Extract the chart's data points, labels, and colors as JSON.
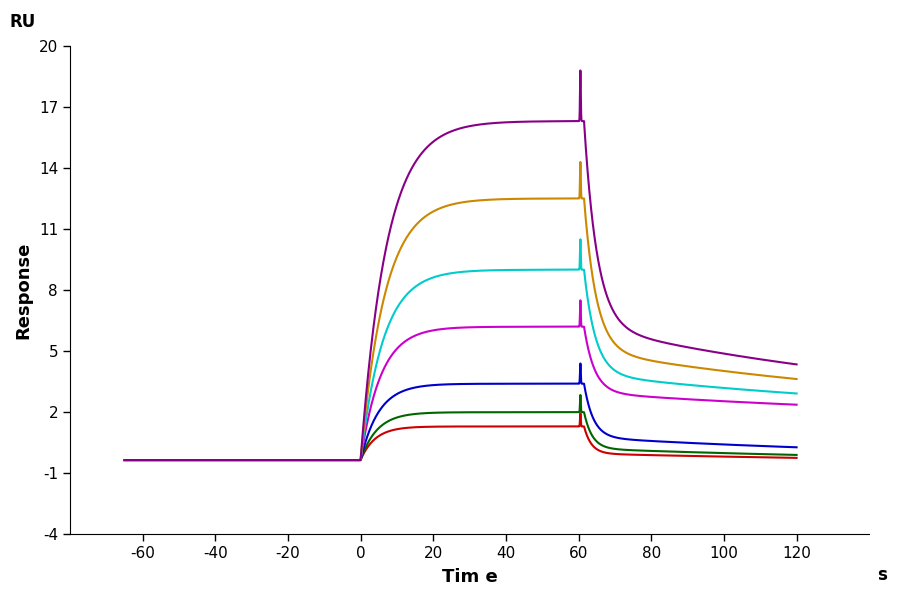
{
  "xlabel": "Tim e",
  "ylabel": "Response",
  "ru_label": "RU",
  "s_label": "s",
  "xlim": [
    -80,
    140
  ],
  "ylim": [
    -4,
    20
  ],
  "xticks": [
    -60,
    -40,
    -20,
    0,
    20,
    40,
    60,
    80,
    100,
    120
  ],
  "yticks": [
    -4,
    -1,
    2,
    5,
    8,
    11,
    14,
    17,
    20
  ],
  "background_color": "#ffffff",
  "curves": [
    {
      "color": "#cc0000",
      "baseline": -0.35,
      "plateau": 1.3,
      "peak_extra": 0.65,
      "dissoc_fast_drop": 0.5,
      "dissoc_end": -0.6,
      "k_on": 0.25,
      "k_off_fast": 0.5,
      "k_off_slow": 0.008
    },
    {
      "color": "#006600",
      "baseline": -0.35,
      "plateau": 2.0,
      "peak_extra": 0.85,
      "dissoc_fast_drop": 0.6,
      "dissoc_end": -0.55,
      "k_on": 0.22,
      "k_off_fast": 0.45,
      "k_off_slow": 0.009
    },
    {
      "color": "#0000cc",
      "baseline": -0.35,
      "plateau": 3.4,
      "peak_extra": 1.0,
      "dissoc_fast_drop": 0.8,
      "dissoc_end": -0.35,
      "k_on": 0.2,
      "k_off_fast": 0.4,
      "k_off_slow": 0.01
    },
    {
      "color": "#cc00cc",
      "baseline": -0.35,
      "plateau": 6.2,
      "peak_extra": 1.3,
      "dissoc_fast_drop": 1.5,
      "dissoc_end": 1.6,
      "k_on": 0.18,
      "k_off_fast": 0.35,
      "k_off_slow": 0.01
    },
    {
      "color": "#00cccc",
      "baseline": -0.35,
      "plateau": 9.0,
      "peak_extra": 1.5,
      "dissoc_fast_drop": 2.5,
      "dissoc_end": 1.7,
      "k_on": 0.16,
      "k_off_fast": 0.32,
      "k_off_slow": 0.01
    },
    {
      "color": "#cc8800",
      "baseline": -0.35,
      "plateau": 12.5,
      "peak_extra": 1.8,
      "dissoc_fast_drop": 4.0,
      "dissoc_end": 1.85,
      "k_on": 0.15,
      "k_off_fast": 0.3,
      "k_off_slow": 0.01
    },
    {
      "color": "#880088",
      "baseline": -0.35,
      "plateau": 16.3,
      "peak_extra": 2.5,
      "dissoc_fast_drop": 6.0,
      "dissoc_end": 1.95,
      "k_on": 0.14,
      "k_off_fast": 0.28,
      "k_off_slow": 0.01
    }
  ]
}
